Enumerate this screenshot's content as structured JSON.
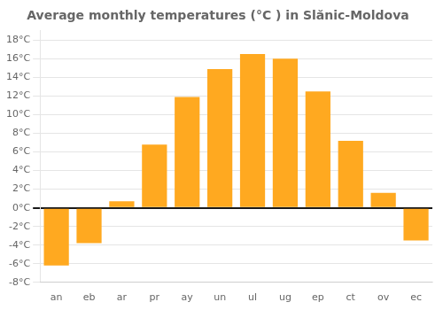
{
  "chart_data": {
    "type": "bar",
    "title": "Average monthly temperatures (°C ) in Slănic-Moldova",
    "categories": [
      "an",
      "eb",
      "ar",
      "pr",
      "ay",
      "un",
      "ul",
      "ug",
      "ep",
      "ct",
      "ov",
      "ec"
    ],
    "values": [
      -6.2,
      -3.8,
      0.7,
      6.8,
      11.9,
      14.9,
      16.5,
      16.0,
      12.5,
      7.2,
      1.6,
      -3.5
    ],
    "color": "#FFA920",
    "ylim": [
      -8,
      19
    ],
    "yticks": [
      {
        "value": -8,
        "label": "-8°C"
      },
      {
        "value": -6,
        "label": "-6°C"
      },
      {
        "value": -4,
        "label": "-4°C"
      },
      {
        "value": -2,
        "label": "-2°C"
      },
      {
        "value": 0,
        "label": "0°C"
      },
      {
        "value": 2,
        "label": "2°C"
      },
      {
        "value": 4,
        "label": "4°C"
      },
      {
        "value": 6,
        "label": "6°C"
      },
      {
        "value": 8,
        "label": "8°C"
      },
      {
        "value": 10,
        "label": "10°C"
      },
      {
        "value": 12,
        "label": "12°C"
      },
      {
        "value": 14,
        "label": "14°C"
      },
      {
        "value": 16,
        "label": "16°C"
      },
      {
        "value": 18,
        "label": "18°C"
      }
    ],
    "grid": true
  }
}
